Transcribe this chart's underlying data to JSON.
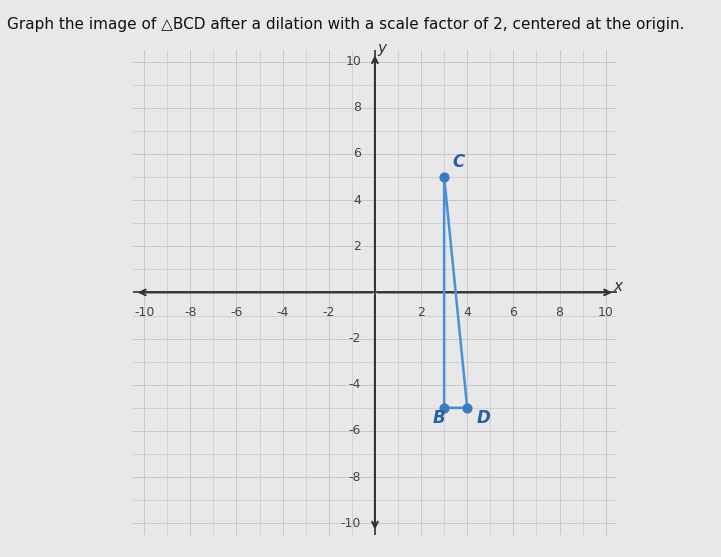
{
  "title": "Graph the image of △BCD after a dilation with a scale factor of 2, centered at the origin.",
  "triangle_vertices": {
    "B": [
      3,
      -5
    ],
    "C": [
      3,
      5
    ],
    "D": [
      4,
      -5
    ]
  },
  "triangle_color": "#4a90d9",
  "triangle_linewidth": 1.8,
  "dot_color": "#3a7abf",
  "dot_size": 40,
  "label_color": "#2a5fa8",
  "label_fontsize": 12,
  "axis_range": [
    -10,
    10
  ],
  "grid_color": "#c8c8c8",
  "grid_linewidth": 0.5,
  "tick_interval": 2,
  "background_color": "#e8e8e8",
  "figsize": [
    7.21,
    5.57
  ],
  "dpi": 100,
  "title_fontsize": 11
}
